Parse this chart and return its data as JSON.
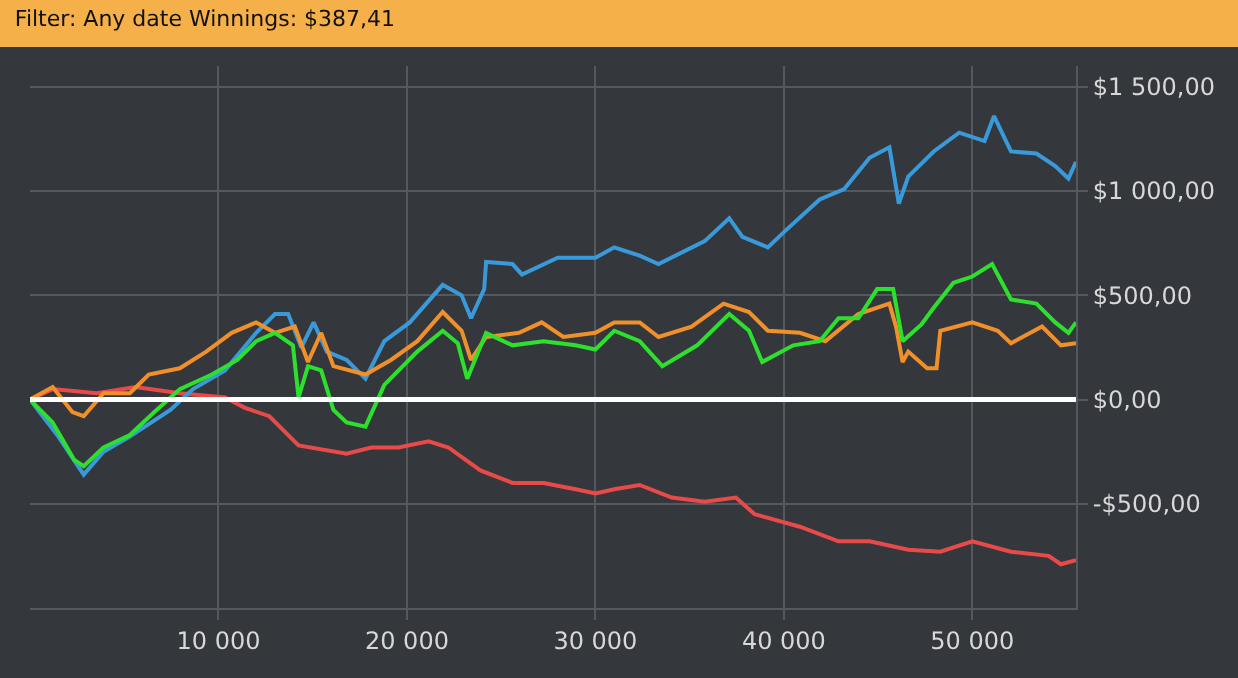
{
  "chart_data": {
    "type": "line",
    "title": "Filter: Any date Winnings: $387,41",
    "xlim": [
      0,
      55500
    ],
    "ylim": [
      -1000,
      1600
    ],
    "xticks": [
      {
        "value": 10000,
        "label": "10 000"
      },
      {
        "value": 20000,
        "label": "20 000"
      },
      {
        "value": 30000,
        "label": "30 000"
      },
      {
        "value": 40000,
        "label": "40 000"
      },
      {
        "value": 50000,
        "label": "50 000"
      }
    ],
    "yticks": [
      {
        "value": -500,
        "label": "-$500,00"
      },
      {
        "value": 0,
        "label": "$0,00"
      },
      {
        "value": 500,
        "label": "$500,00"
      },
      {
        "value": 1000,
        "label": "$1 000,00"
      },
      {
        "value": 1500,
        "label": "$1 500,00"
      }
    ],
    "grid": true,
    "marker": "none",
    "line_style": "solid",
    "ref_lines": [
      {
        "axis": "y",
        "value": 0,
        "label": null,
        "color": "#ffffff"
      }
    ],
    "series": [
      {
        "color": "#e84a4a",
        "x": [
          0,
          1200,
          3550,
          5600,
          7950,
          10350,
          11400,
          12700,
          14250,
          16800,
          18100,
          19550,
          21150,
          22200,
          23900,
          25600,
          27250,
          28950,
          30000,
          31000,
          32350,
          34050,
          35800,
          37450,
          38450,
          40850,
          42900,
          44550,
          46600,
          48300,
          50000,
          52050,
          54050,
          54700,
          55500
        ],
        "values": [
          0,
          50,
          30,
          60,
          30,
          10,
          -40,
          -80,
          -220,
          -260,
          -230,
          -230,
          -200,
          -230,
          -340,
          -400,
          -400,
          -430,
          -450,
          -430,
          -410,
          -470,
          -490,
          -470,
          -550,
          -610,
          -680,
          -680,
          -720,
          -730,
          -680,
          -730,
          -750,
          -790,
          -770
        ]
      },
      {
        "color": "#3a9ad9",
        "x": [
          0,
          1525,
          2850,
          3900,
          5250,
          7450,
          8650,
          10350,
          12000,
          13000,
          13700,
          14400,
          15050,
          15750,
          16800,
          17800,
          18800,
          20150,
          21900,
          22900,
          23400,
          24100,
          24200,
          25600,
          26100,
          28000,
          30000,
          31000,
          32350,
          33350,
          35800,
          37100,
          37800,
          39150,
          40200,
          41900,
          43200,
          44550,
          45600,
          46100,
          46600,
          47950,
          49300,
          50650,
          51150,
          52050,
          53400,
          54400,
          55100,
          55500
        ],
        "values": [
          0,
          -180,
          -360,
          -250,
          -180,
          -50,
          50,
          140,
          320,
          410,
          410,
          250,
          370,
          230,
          190,
          100,
          280,
          370,
          550,
          500,
          390,
          530,
          660,
          650,
          600,
          680,
          680,
          730,
          690,
          650,
          760,
          870,
          780,
          730,
          820,
          960,
          1010,
          1160,
          1210,
          940,
          1070,
          1190,
          1280,
          1240,
          1360,
          1190,
          1180,
          1120,
          1060,
          1140
        ]
      },
      {
        "color": "#f0902a",
        "x": [
          0,
          1200,
          2250,
          2850,
          3900,
          5300,
          6300,
          7950,
          9350,
          10700,
          12000,
          13000,
          14050,
          14750,
          15450,
          16100,
          17800,
          19150,
          20550,
          21900,
          22900,
          23400,
          24200,
          25950,
          27150,
          28300,
          30000,
          31000,
          32350,
          33350,
          35100,
          36800,
          38150,
          39150,
          40850,
          42200,
          43950,
          45600,
          45950,
          46300,
          46600,
          47600,
          48100,
          48300,
          50000,
          51350,
          52050,
          53700,
          54700,
          55500
        ],
        "values": [
          0,
          60,
          -60,
          -80,
          30,
          30,
          120,
          150,
          230,
          320,
          370,
          320,
          350,
          180,
          320,
          160,
          120,
          190,
          280,
          420,
          330,
          190,
          300,
          320,
          370,
          300,
          320,
          370,
          370,
          300,
          350,
          460,
          420,
          330,
          320,
          280,
          410,
          460,
          350,
          180,
          230,
          150,
          150,
          330,
          370,
          330,
          270,
          350,
          260,
          270
        ]
      },
      {
        "color": "#2ee02e",
        "x": [
          0,
          1200,
          2350,
          2850,
          3900,
          5300,
          6600,
          7950,
          9650,
          11000,
          12000,
          13000,
          13950,
          14250,
          14750,
          15450,
          16100,
          16800,
          17800,
          18800,
          20550,
          21900,
          22700,
          23200,
          24200,
          25600,
          27250,
          28950,
          30000,
          31000,
          32350,
          33550,
          35400,
          37100,
          38150,
          38850,
          40500,
          41900,
          42900,
          43950,
          44950,
          45800,
          46300,
          47300,
          47950,
          49000,
          50000,
          51050,
          52050,
          53400,
          54400,
          55100,
          55500
        ],
        "values": [
          0,
          -110,
          -290,
          -320,
          -230,
          -170,
          -60,
          50,
          120,
          190,
          280,
          320,
          260,
          10,
          160,
          140,
          -50,
          -110,
          -130,
          70,
          230,
          330,
          270,
          100,
          320,
          260,
          280,
          260,
          240,
          330,
          280,
          160,
          260,
          410,
          330,
          180,
          260,
          280,
          390,
          390,
          530,
          530,
          280,
          360,
          440,
          560,
          590,
          650,
          480,
          460,
          370,
          320,
          370
        ]
      }
    ]
  }
}
